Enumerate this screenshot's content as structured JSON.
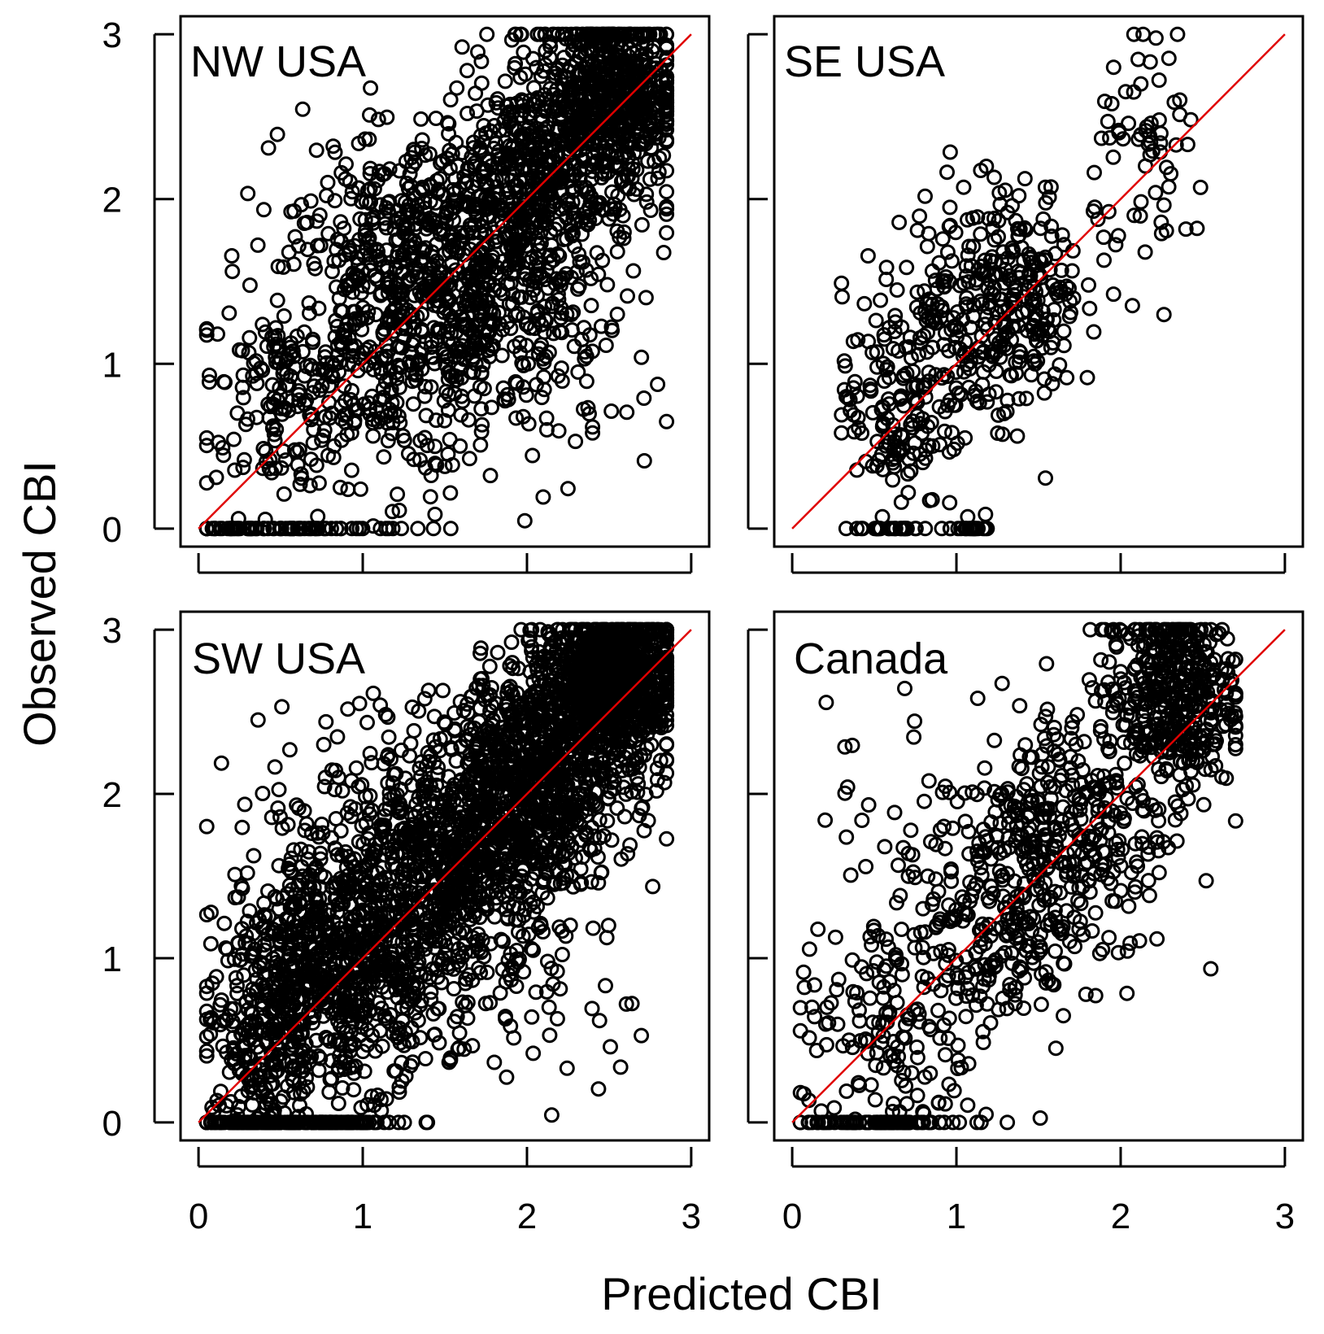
{
  "colors": {
    "points": "#000000",
    "reference_line": "#ff0000",
    "background": "#ffffff"
  },
  "chart_data": {
    "type": "scatter",
    "layout": "2x2 panels",
    "xlabel": "Predicted CBI",
    "ylabel": "Observed CBI",
    "xlim": [
      0,
      3
    ],
    "ylim": [
      0,
      3
    ],
    "x_ticks": [
      "0",
      "1",
      "2",
      "3"
    ],
    "y_ticks": [
      "0",
      "1",
      "2",
      "3"
    ],
    "reference_line": {
      "slope": 1,
      "intercept": 0,
      "color": "#ff0000"
    },
    "panels": [
      {
        "title": "NW USA",
        "point_count_approx": 2500,
        "x_range": [
          0.05,
          2.85
        ],
        "clusters": [
          {
            "x": 0.4,
            "y": 0.0,
            "n": 60,
            "sx": 0.25,
            "sy": 0.0
          },
          {
            "x": 0.9,
            "y": 0.0,
            "n": 20,
            "sx": 0.3,
            "sy": 0.0
          },
          {
            "x": 0.5,
            "y": 0.8,
            "n": 150,
            "sx": 0.25,
            "sy": 0.35
          },
          {
            "x": 1.2,
            "y": 1.2,
            "n": 380,
            "sx": 0.35,
            "sy": 0.45
          },
          {
            "x": 1.6,
            "y": 1.5,
            "n": 420,
            "sx": 0.35,
            "sy": 0.45
          },
          {
            "x": 2.05,
            "y": 2.05,
            "n": 480,
            "sx": 0.3,
            "sy": 0.35
          },
          {
            "x": 2.5,
            "y": 2.65,
            "n": 620,
            "sx": 0.22,
            "sy": 0.28
          },
          {
            "x": 1.0,
            "y": 2.0,
            "n": 60,
            "sx": 0.35,
            "sy": 0.3
          },
          {
            "x": 2.2,
            "y": 1.0,
            "n": 50,
            "sx": 0.3,
            "sy": 0.35
          }
        ]
      },
      {
        "title": "SE USA",
        "point_count_approx": 650,
        "x_range": [
          0.3,
          2.55
        ],
        "clusters": [
          {
            "x": 0.6,
            "y": 0.0,
            "n": 30,
            "sx": 0.12,
            "sy": 0.0
          },
          {
            "x": 1.05,
            "y": 0.0,
            "n": 20,
            "sx": 0.08,
            "sy": 0.0
          },
          {
            "x": 0.6,
            "y": 0.75,
            "n": 130,
            "sx": 0.15,
            "sy": 0.35
          },
          {
            "x": 1.05,
            "y": 1.3,
            "n": 200,
            "sx": 0.2,
            "sy": 0.4
          },
          {
            "x": 1.45,
            "y": 1.4,
            "n": 160,
            "sx": 0.15,
            "sy": 0.35
          },
          {
            "x": 2.2,
            "y": 2.25,
            "n": 70,
            "sx": 0.18,
            "sy": 0.35
          }
        ]
      },
      {
        "title": "SW USA",
        "point_count_approx": 4000,
        "x_range": [
          0.05,
          2.85
        ],
        "clusters": [
          {
            "x": 0.6,
            "y": 0.0,
            "n": 140,
            "sx": 0.35,
            "sy": 0.0
          },
          {
            "x": 0.4,
            "y": 0.5,
            "n": 300,
            "sx": 0.2,
            "sy": 0.4
          },
          {
            "x": 0.9,
            "y": 0.95,
            "n": 650,
            "sx": 0.3,
            "sy": 0.35
          },
          {
            "x": 1.5,
            "y": 1.55,
            "n": 700,
            "sx": 0.35,
            "sy": 0.35
          },
          {
            "x": 2.05,
            "y": 2.1,
            "n": 800,
            "sx": 0.3,
            "sy": 0.32
          },
          {
            "x": 2.5,
            "y": 2.7,
            "n": 900,
            "sx": 0.2,
            "sy": 0.22
          },
          {
            "x": 0.7,
            "y": 2.0,
            "n": 40,
            "sx": 0.25,
            "sy": 0.3
          },
          {
            "x": 2.0,
            "y": 0.8,
            "n": 50,
            "sx": 0.35,
            "sy": 0.35
          }
        ]
      },
      {
        "title": "Canada",
        "point_count_approx": 1200,
        "x_range": [
          0.05,
          2.7
        ],
        "clusters": [
          {
            "x": 0.6,
            "y": 0.0,
            "n": 70,
            "sx": 0.3,
            "sy": 0.0
          },
          {
            "x": 0.6,
            "y": 0.5,
            "n": 140,
            "sx": 0.3,
            "sy": 0.35
          },
          {
            "x": 1.2,
            "y": 1.2,
            "n": 240,
            "sx": 0.3,
            "sy": 0.4
          },
          {
            "x": 1.7,
            "y": 1.8,
            "n": 280,
            "sx": 0.3,
            "sy": 0.4
          },
          {
            "x": 2.3,
            "y": 2.6,
            "n": 420,
            "sx": 0.2,
            "sy": 0.3
          },
          {
            "x": 0.7,
            "y": 1.9,
            "n": 30,
            "sx": 0.25,
            "sy": 0.35
          }
        ]
      }
    ]
  }
}
